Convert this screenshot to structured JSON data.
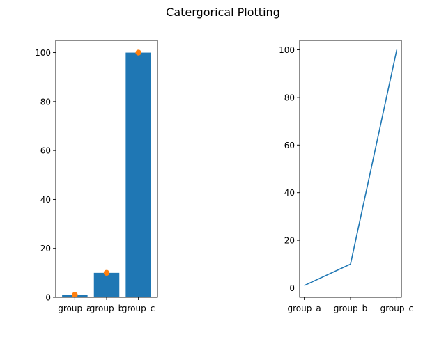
{
  "figure": {
    "suptitle": "Catergorical Plotting"
  },
  "colors": {
    "bar": "#1f77b4",
    "line": "#1f77b4",
    "scatter": "#ff7f0e",
    "axis": "#000000",
    "background": "#ffffff"
  },
  "chart_data": [
    {
      "type": "bar",
      "categories": [
        "group_a",
        "group_b",
        "group_c"
      ],
      "series": [
        {
          "kind": "bar",
          "values": [
            1,
            10,
            100
          ]
        },
        {
          "kind": "scatter",
          "values": [
            1,
            10,
            100
          ]
        }
      ],
      "ylim": [
        0,
        105
      ],
      "yticks": [
        0,
        20,
        40,
        60,
        80,
        100
      ],
      "title": "",
      "xlabel": "",
      "ylabel": "",
      "grid": false
    },
    {
      "type": "line",
      "categories": [
        "group_a",
        "group_b",
        "group_c"
      ],
      "series": [
        {
          "kind": "line",
          "values": [
            1,
            10,
            100
          ]
        }
      ],
      "ylim": [
        -3.95,
        103.95
      ],
      "yticks": [
        0,
        20,
        40,
        60,
        80,
        100
      ],
      "title": "",
      "xlabel": "",
      "ylabel": "",
      "grid": false
    }
  ]
}
